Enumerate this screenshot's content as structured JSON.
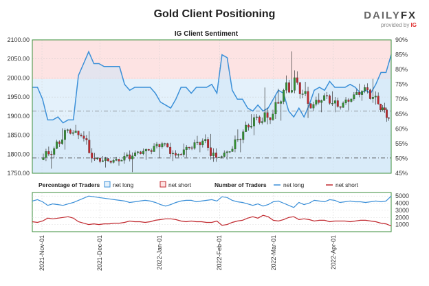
{
  "title": "Gold Client Positioning",
  "logo": {
    "brand": "DAILYFX",
    "brand_a": "DAILY",
    "brand_b": "FX",
    "provided_by": "provided by",
    "ig": "IG"
  },
  "chart_data": {
    "type": "candlestick",
    "subtitle": "IG Client Sentiment",
    "left_axis": {
      "ticks": [
        "2100.00",
        "2050.00",
        "2000.00",
        "1950.00",
        "1900.00",
        "1850.00",
        "1800.00",
        "1750.00"
      ],
      "range": [
        1750,
        2100
      ]
    },
    "right_axis": {
      "ticks": [
        "90%",
        "85%",
        "80%",
        "75%",
        "70%",
        "65%",
        "60%",
        "55%",
        "50%",
        "45%"
      ],
      "range": [
        45,
        90
      ]
    },
    "bottom_right_axis": {
      "ticks": [
        "5000",
        "4000",
        "3000",
        "2000",
        "1000"
      ],
      "range": [
        0,
        5500
      ]
    },
    "x_dates": [
      "2021-Nov-01",
      "2021-Dec-01",
      "2022-Jan-01",
      "2022-Feb-01",
      "2022-Mar-01",
      "2022-Apr-01"
    ],
    "reference_lines": {
      "price": 1790,
      "percent": 66
    },
    "legend": {
      "pct_header": "Percentage of Traders",
      "num_header": "Number of Traders",
      "net_long": "net long",
      "net_short": "net short"
    },
    "colors": {
      "up": "#2f8f2f",
      "down": "#c0272d",
      "long": "#3a8fd8",
      "short": "#c0272d"
    },
    "candles_weekly": [
      {
        "date": "2021-11-01",
        "open": 1785,
        "high": 1820,
        "low": 1762,
        "close": 1815
      },
      {
        "date": "2021-11-08",
        "open": 1815,
        "high": 1868,
        "low": 1812,
        "close": 1864
      },
      {
        "date": "2021-11-15",
        "open": 1864,
        "high": 1877,
        "low": 1840,
        "close": 1848
      },
      {
        "date": "2021-11-22",
        "open": 1848,
        "high": 1860,
        "low": 1778,
        "close": 1788
      },
      {
        "date": "2021-11-29",
        "open": 1788,
        "high": 1795,
        "low": 1765,
        "close": 1782
      },
      {
        "date": "2021-12-06",
        "open": 1782,
        "high": 1793,
        "low": 1770,
        "close": 1784
      },
      {
        "date": "2021-12-13",
        "open": 1784,
        "high": 1810,
        "low": 1753,
        "close": 1804
      },
      {
        "date": "2021-12-20",
        "open": 1804,
        "high": 1815,
        "low": 1785,
        "close": 1810
      },
      {
        "date": "2021-12-27",
        "open": 1810,
        "high": 1832,
        "low": 1790,
        "close": 1828
      },
      {
        "date": "2022-01-03",
        "open": 1828,
        "high": 1830,
        "low": 1782,
        "close": 1797
      },
      {
        "date": "2022-01-10",
        "open": 1797,
        "high": 1828,
        "low": 1792,
        "close": 1817
      },
      {
        "date": "2022-01-17",
        "open": 1817,
        "high": 1848,
        "low": 1805,
        "close": 1835
      },
      {
        "date": "2022-01-24",
        "open": 1835,
        "high": 1853,
        "low": 1780,
        "close": 1791
      },
      {
        "date": "2022-01-31",
        "open": 1791,
        "high": 1810,
        "low": 1786,
        "close": 1807
      },
      {
        "date": "2022-02-07",
        "open": 1807,
        "high": 1865,
        "low": 1805,
        "close": 1859
      },
      {
        "date": "2022-02-14",
        "open": 1859,
        "high": 1905,
        "low": 1850,
        "close": 1898
      },
      {
        "date": "2022-02-21",
        "open": 1898,
        "high": 1975,
        "low": 1878,
        "close": 1890
      },
      {
        "date": "2022-02-28",
        "open": 1890,
        "high": 1972,
        "low": 1888,
        "close": 1968
      },
      {
        "date": "2022-03-07",
        "open": 1968,
        "high": 2070,
        "low": 1960,
        "close": 1988
      },
      {
        "date": "2022-03-14",
        "open": 1988,
        "high": 1990,
        "low": 1895,
        "close": 1921
      },
      {
        "date": "2022-03-21",
        "open": 1921,
        "high": 1960,
        "low": 1910,
        "close": 1954
      },
      {
        "date": "2022-03-28",
        "open": 1954,
        "high": 1965,
        "low": 1910,
        "close": 1925
      },
      {
        "date": "2022-04-04",
        "open": 1925,
        "high": 1950,
        "low": 1915,
        "close": 1945
      },
      {
        "date": "2022-04-11",
        "open": 1945,
        "high": 1985,
        "low": 1940,
        "close": 1975
      },
      {
        "date": "2022-04-18",
        "open": 1975,
        "high": 1998,
        "low": 1930,
        "close": 1932
      },
      {
        "date": "2022-04-25",
        "open": 1932,
        "high": 1935,
        "low": 1885,
        "close": 1895
      }
    ],
    "net_long_pct": [
      74,
      74,
      70,
      63,
      63,
      64,
      62,
      63,
      63,
      78,
      82,
      86,
      82,
      82,
      81,
      81,
      81,
      81,
      75,
      73,
      74,
      74,
      74,
      74,
      72,
      69,
      68,
      67,
      70,
      74,
      74,
      72,
      74,
      74,
      74,
      75,
      72,
      85,
      84,
      73,
      70,
      70,
      67,
      66,
      68,
      66,
      67,
      70,
      73,
      72,
      66,
      64,
      67,
      64,
      68,
      73,
      74,
      73,
      76,
      74,
      74,
      74,
      75,
      74,
      72,
      73,
      72,
      75,
      79,
      79,
      85
    ],
    "net_long_count": [
      4300,
      4500,
      4200,
      3700,
      3900,
      3800,
      3700,
      3900,
      4100,
      4400,
      4700,
      5000,
      4900,
      4800,
      4700,
      4600,
      4500,
      4400,
      4300,
      4100,
      4200,
      4300,
      4400,
      4300,
      4100,
      3800,
      3600,
      3800,
      4100,
      4300,
      4400,
      4400,
      4200,
      4300,
      4400,
      4500,
      4300,
      4900,
      4800,
      4400,
      4200,
      4100,
      3900,
      3700,
      3900,
      3600,
      3800,
      4200,
      4300,
      4000,
      3700,
      3400,
      4100,
      3800,
      4000,
      4400,
      4300,
      4200,
      4500,
      4400,
      4100,
      4200,
      4300,
      4200,
      4200,
      4100,
      4200,
      4300,
      4200,
      4300,
      5000
    ],
    "net_short_count": [
      1400,
      1300,
      1500,
      1900,
      1800,
      1900,
      2000,
      2100,
      1900,
      1400,
      1200,
      1000,
      1100,
      1000,
      1100,
      1100,
      1200,
      1200,
      1300,
      1500,
      1400,
      1400,
      1300,
      1400,
      1600,
      1700,
      1800,
      1800,
      1700,
      1500,
      1400,
      1500,
      1400,
      1400,
      1300,
      1300,
      1500,
      900,
      1000,
      1300,
      1500,
      1600,
      1900,
      2100,
      1900,
      2300,
      2100,
      1600,
      1500,
      1700,
      2000,
      2100,
      1700,
      1800,
      1700,
      1500,
      1600,
      1600,
      1400,
      1500,
      1500,
      1500,
      1400,
      1500,
      1600,
      1600,
      1500,
      1400,
      1200,
      1100,
      800
    ]
  }
}
